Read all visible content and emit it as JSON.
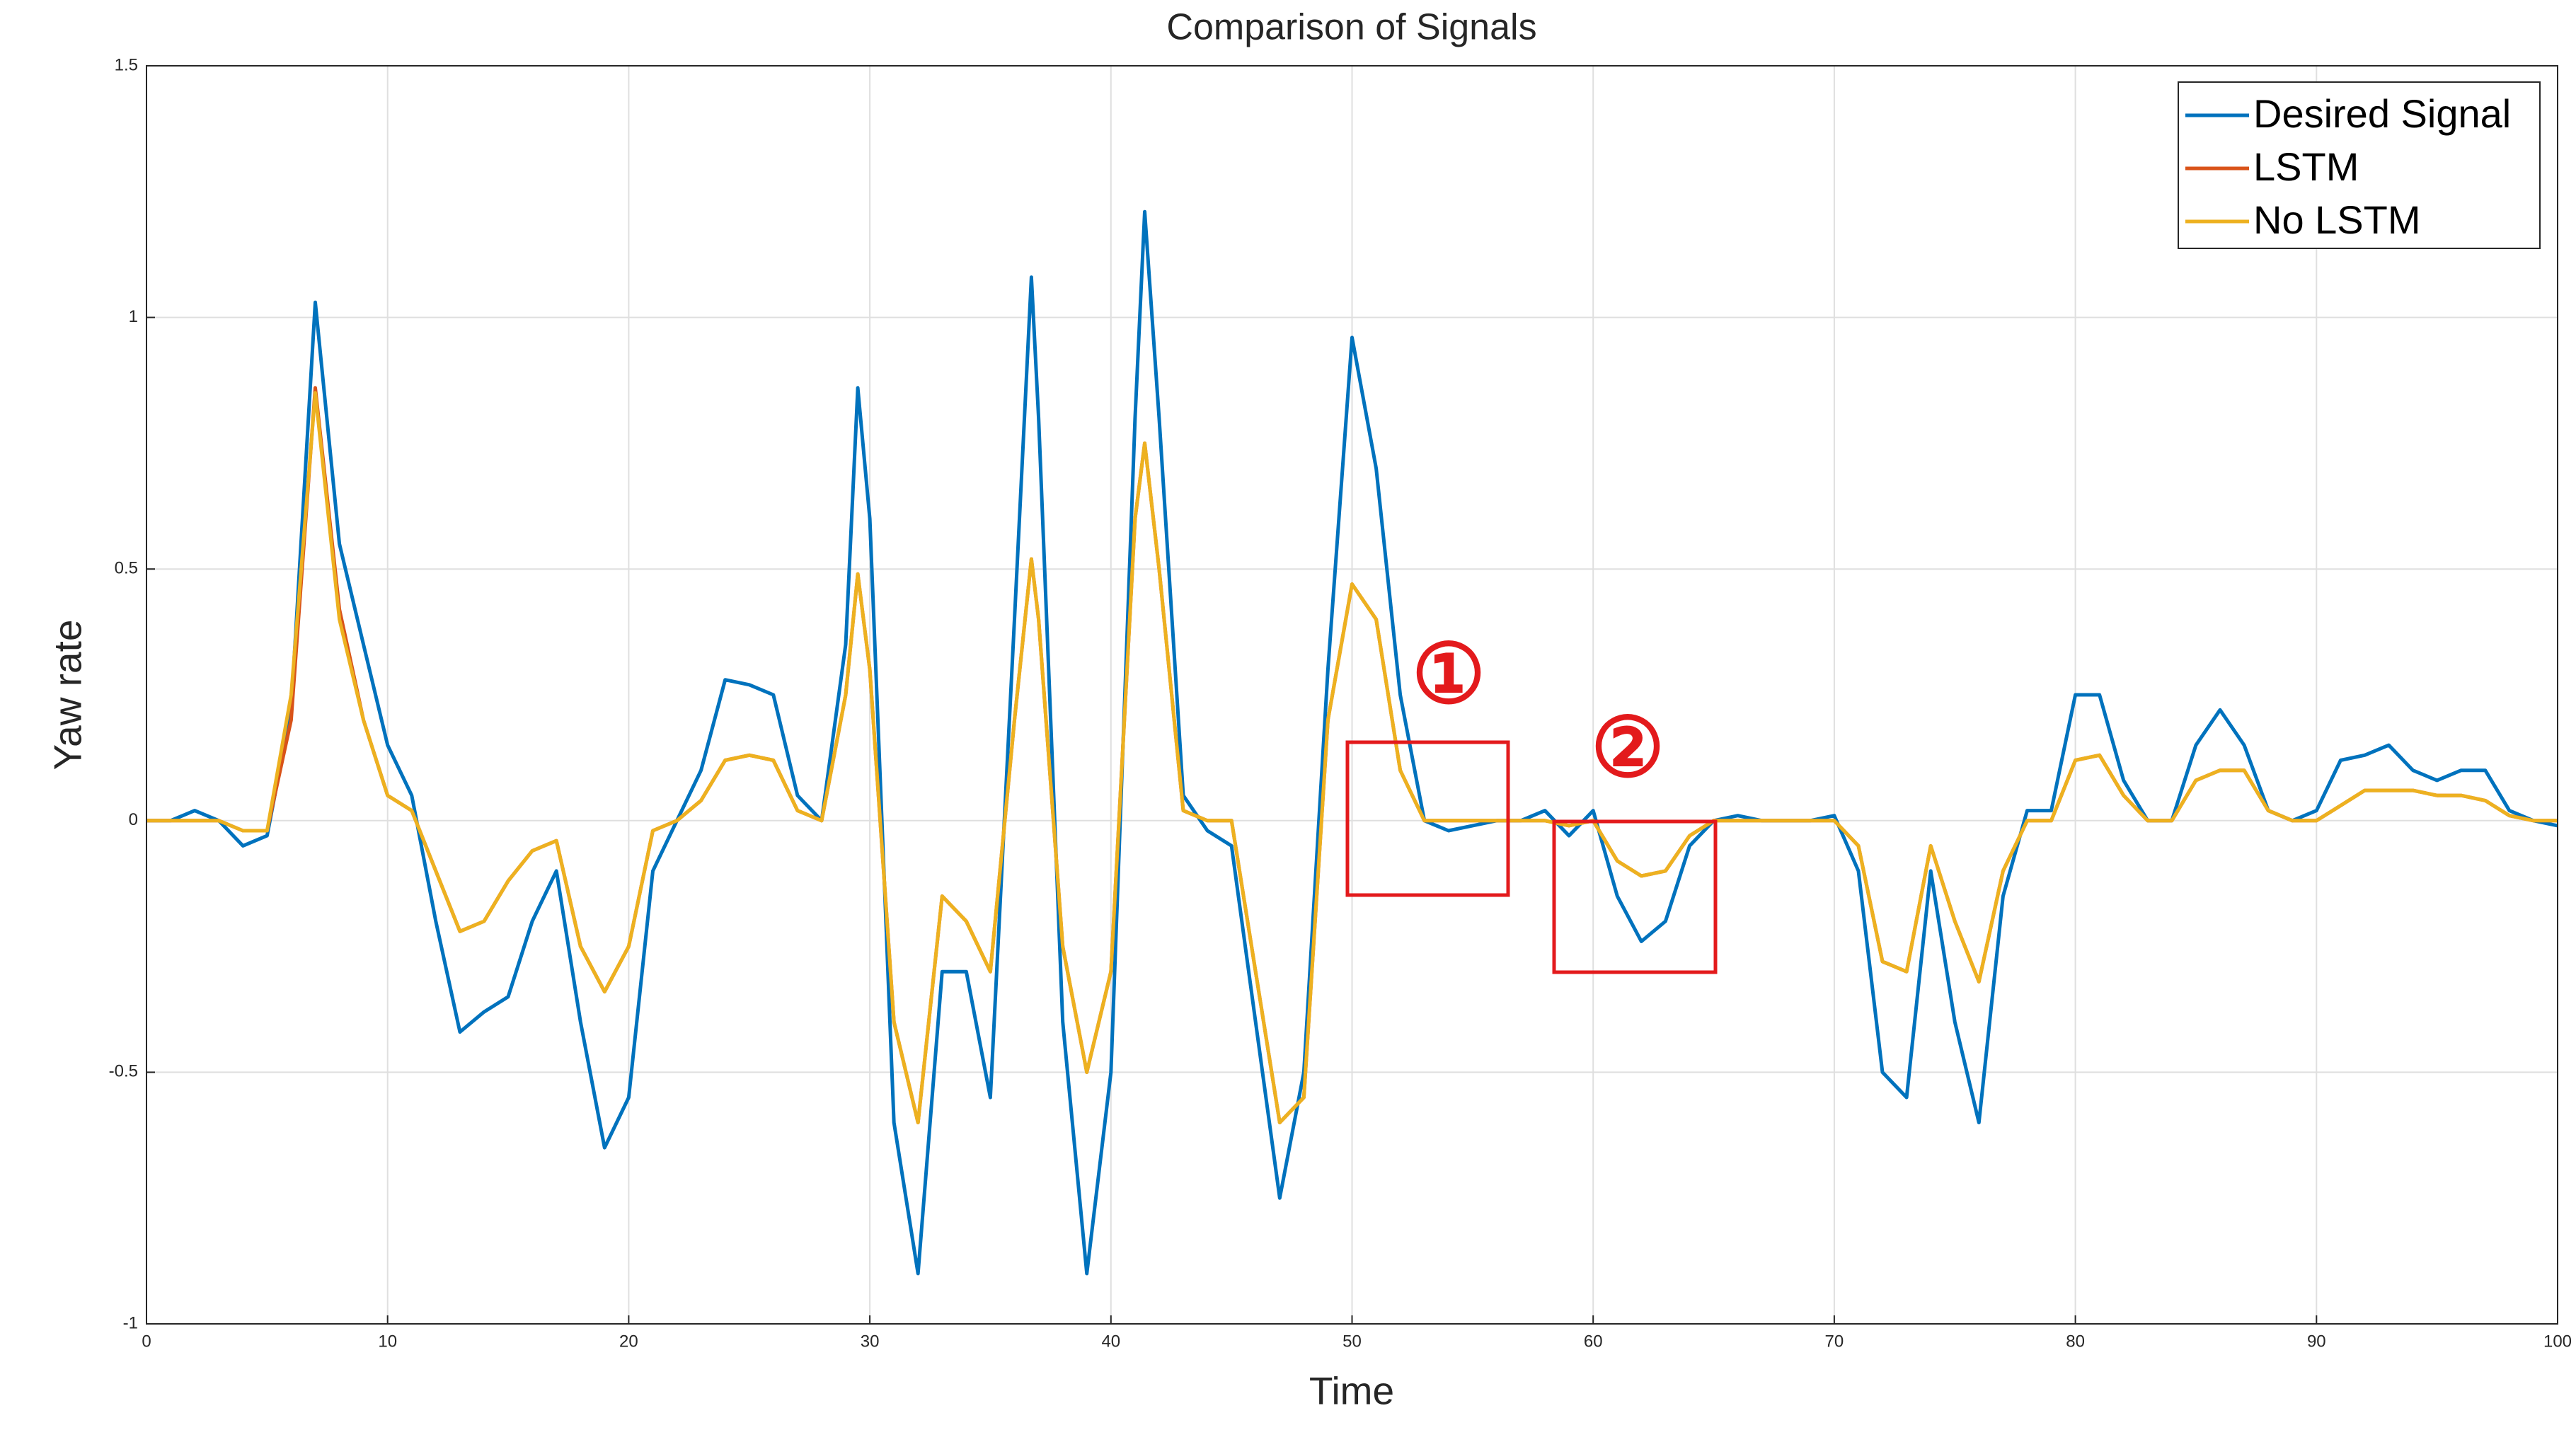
{
  "chart_data": {
    "type": "line",
    "title": "Comparison of Signals",
    "x_label": "Time",
    "y_label": "Yaw rate",
    "x": [
      0,
      1,
      2,
      3,
      4,
      5,
      6,
      7,
      8,
      9,
      10,
      11,
      12,
      13,
      14,
      15,
      16,
      17,
      18,
      19,
      20,
      21,
      22,
      23,
      24,
      25,
      26,
      27,
      28,
      29,
      29.5,
      30,
      31,
      32,
      33,
      34,
      35,
      36,
      36.7,
      37,
      38,
      39,
      40,
      41,
      41.4,
      42,
      43,
      44,
      45,
      46,
      47,
      48,
      49,
      50,
      51,
      52,
      53,
      54,
      55,
      56,
      57,
      58,
      59,
      60,
      61,
      62,
      63,
      64,
      65,
      66,
      67,
      68,
      69,
      70,
      71,
      72,
      73,
      74,
      75,
      76,
      77,
      78,
      79,
      80,
      81,
      82,
      83,
      84,
      85,
      86,
      87,
      88,
      89,
      90,
      91,
      92,
      93,
      94,
      95,
      96,
      97,
      98,
      99,
      100
    ],
    "series": [
      {
        "name": "Desired Signal",
        "color": "#0072bd",
        "values": [
          0,
          0,
          0.02,
          0,
          -0.05,
          -0.03,
          0.22,
          1.03,
          0.55,
          0.35,
          0.15,
          0.05,
          -0.2,
          -0.42,
          -0.38,
          -0.35,
          -0.2,
          -0.1,
          -0.4,
          -0.65,
          -0.55,
          -0.1,
          0,
          0.1,
          0.28,
          0.27,
          0.25,
          0.05,
          0,
          0.35,
          0.86,
          0.6,
          -0.6,
          -0.9,
          -0.3,
          -0.3,
          -0.55,
          0.4,
          1.08,
          0.8,
          -0.4,
          -0.9,
          -0.5,
          0.8,
          1.21,
          0.8,
          0.05,
          -0.02,
          -0.05,
          -0.4,
          -0.75,
          -0.5,
          0.3,
          0.96,
          0.7,
          0.25,
          0,
          -0.02,
          -0.01,
          0,
          0,
          0.02,
          -0.03,
          0.02,
          -0.15,
          -0.24,
          -0.2,
          -0.05,
          0,
          0.01,
          0,
          0,
          0,
          0.01,
          -0.1,
          -0.5,
          -0.55,
          -0.1,
          -0.4,
          -0.6,
          -0.15,
          0.02,
          0.02,
          0.25,
          0.25,
          0.08,
          0,
          0,
          0.15,
          0.22,
          0.15,
          0.02,
          0,
          0.02,
          0.12,
          0.13,
          0.15,
          0.1,
          0.08,
          0.1,
          0.1,
          0.02,
          0,
          -0.01
        ]
      },
      {
        "name": "LSTM",
        "color": "#d95319",
        "values": [
          0,
          0,
          0,
          0,
          -0.02,
          -0.02,
          0.2,
          0.86,
          0.42,
          0.2,
          0.05,
          0.02,
          -0.1,
          -0.22,
          -0.2,
          -0.12,
          -0.06,
          -0.04,
          -0.25,
          -0.34,
          -0.25,
          -0.02,
          0,
          0.04,
          0.12,
          0.13,
          0.12,
          0.02,
          0,
          0.25,
          0.49,
          0.3,
          -0.4,
          -0.6,
          -0.15,
          -0.2,
          -0.3,
          0.2,
          0.52,
          0.4,
          -0.25,
          -0.5,
          -0.3,
          0.6,
          0.75,
          0.5,
          0.02,
          0,
          0,
          -0.3,
          -0.6,
          -0.55,
          0.2,
          0.47,
          0.4,
          0.1,
          0,
          0,
          0,
          0,
          0,
          0,
          -0.01,
          0,
          -0.08,
          -0.11,
          -0.1,
          -0.03,
          0,
          0,
          0,
          0,
          0,
          0,
          -0.05,
          -0.28,
          -0.3,
          -0.05,
          -0.2,
          -0.32,
          -0.1,
          0,
          0,
          0.12,
          0.13,
          0.05,
          0,
          0,
          0.08,
          0.1,
          0.1,
          0.02,
          0,
          0,
          0.03,
          0.06,
          0.06,
          0.06,
          0.05,
          0.05,
          0.04,
          0.01,
          0,
          0
        ]
      },
      {
        "name": "No LSTM",
        "color": "#edb120",
        "values": [
          0,
          0,
          0,
          0,
          -0.02,
          -0.02,
          0.25,
          0.85,
          0.4,
          0.2,
          0.05,
          0.02,
          -0.1,
          -0.22,
          -0.2,
          -0.12,
          -0.06,
          -0.04,
          -0.25,
          -0.34,
          -0.25,
          -0.02,
          0,
          0.04,
          0.12,
          0.13,
          0.12,
          0.02,
          0,
          0.25,
          0.49,
          0.3,
          -0.4,
          -0.6,
          -0.15,
          -0.2,
          -0.3,
          0.2,
          0.52,
          0.4,
          -0.25,
          -0.5,
          -0.3,
          0.6,
          0.75,
          0.5,
          0.02,
          0,
          0,
          -0.3,
          -0.6,
          -0.55,
          0.2,
          0.47,
          0.4,
          0.1,
          0,
          0,
          0,
          0,
          0,
          0,
          -0.01,
          0,
          -0.08,
          -0.11,
          -0.1,
          -0.03,
          0,
          0,
          0,
          0,
          0,
          0,
          -0.05,
          -0.28,
          -0.3,
          -0.05,
          -0.2,
          -0.32,
          -0.1,
          0,
          0,
          0.12,
          0.13,
          0.05,
          0,
          0,
          0.08,
          0.1,
          0.1,
          0.02,
          0,
          0,
          0.03,
          0.06,
          0.06,
          0.06,
          0.05,
          0.05,
          0.04,
          0.01,
          0,
          0
        ]
      }
    ],
    "xlim": [
      0,
      100
    ],
    "xticks": [
      0,
      10,
      20,
      30,
      40,
      50,
      60,
      70,
      80,
      90,
      100
    ],
    "ylim": [
      -1,
      1.5
    ],
    "yticks": [
      -1,
      -0.5,
      0,
      0.5,
      1,
      1.5
    ],
    "grid": true,
    "legend": "upper right",
    "annotations": [
      "①",
      "②"
    ]
  }
}
